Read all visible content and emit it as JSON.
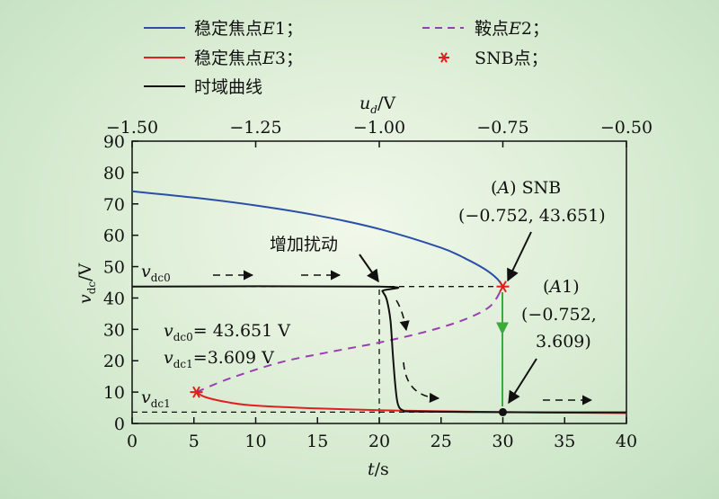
{
  "chart_data": {
    "type": "line",
    "xlabel": {
      "main": "t",
      "unit": "/s"
    },
    "ylabel": {
      "main": "v",
      "sub": "dc",
      "unit": "/V"
    },
    "top_axis_label": {
      "main": "u",
      "sub": "d",
      "unit": "/V"
    },
    "xlim": [
      0,
      40
    ],
    "ylim": [
      0,
      90
    ],
    "top_xlim": [
      -1.5,
      -0.5
    ],
    "x_ticks": [
      "0",
      "5",
      "10",
      "15",
      "20",
      "25",
      "30",
      "35",
      "40"
    ],
    "y_ticks": [
      "0",
      "10",
      "20",
      "30",
      "40",
      "50",
      "60",
      "70",
      "80",
      "90"
    ],
    "top_ticks": [
      "−1.50",
      "−1.25",
      "−1.00",
      "−0.75",
      "−0.50"
    ],
    "grid": false,
    "legend_position": "top",
    "colors": {
      "e1": "#2a4fa8",
      "e2": "#9a3fb0",
      "e3": "#e02020",
      "time": "#111111",
      "snb": "#e02020",
      "arrow_green": "#3aaa3a"
    },
    "legend": [
      {
        "key": "e1",
        "text_prefix": "稳定焦点",
        "text_italic": "E",
        "text_suffix": "1；"
      },
      {
        "key": "e2",
        "text_prefix": "鞍点",
        "text_italic": "E",
        "text_suffix": "2；"
      },
      {
        "key": "e3",
        "text_prefix": "稳定焦点",
        "text_italic": "E",
        "text_suffix": "3；"
      },
      {
        "key": "snb",
        "text": "SNB点；"
      },
      {
        "key": "time",
        "text": "时域曲线"
      }
    ],
    "series": [
      {
        "name": "稳定焦点E1",
        "style": "solid",
        "points": [
          [
            0,
            74.0
          ],
          [
            5,
            72.0
          ],
          [
            10,
            69.5
          ],
          [
            15,
            66.3
          ],
          [
            20,
            62.0
          ],
          [
            25,
            56.0
          ],
          [
            27,
            52.5
          ],
          [
            28.5,
            49.3
          ],
          [
            29.5,
            46.3
          ],
          [
            30,
            43.651
          ]
        ]
      },
      {
        "name": "鞍点E2",
        "style": "dashed",
        "points": [
          [
            5.2,
            10.0
          ],
          [
            8,
            14.5
          ],
          [
            12,
            19.5
          ],
          [
            16,
            22.8
          ],
          [
            20,
            25.8
          ],
          [
            24,
            29.5
          ],
          [
            27,
            33.3
          ],
          [
            29,
            37.5
          ],
          [
            30,
            43.651
          ]
        ]
      },
      {
        "name": "稳定焦点E3",
        "style": "solid",
        "points": [
          [
            5.2,
            10.0
          ],
          [
            6,
            8.3
          ],
          [
            8,
            6.6
          ],
          [
            10,
            5.7
          ],
          [
            15,
            4.8
          ],
          [
            20,
            4.2
          ],
          [
            25,
            3.9
          ],
          [
            30,
            3.609
          ],
          [
            35,
            3.45
          ],
          [
            40,
            3.3
          ]
        ]
      },
      {
        "name": "时域曲线",
        "style": "solid",
        "points": [
          [
            0,
            43.651
          ],
          [
            20,
            43.651
          ],
          [
            20.25,
            42.2
          ],
          [
            20.6,
            39.5
          ],
          [
            20.9,
            33.0
          ],
          [
            21.1,
            22.0
          ],
          [
            21.3,
            12.0
          ],
          [
            21.5,
            6.3
          ],
          [
            21.9,
            4.2
          ],
          [
            23,
            3.8
          ],
          [
            30,
            3.609
          ],
          [
            35,
            3.55
          ],
          [
            40,
            3.55
          ]
        ]
      }
    ],
    "markers": [
      {
        "x": 30,
        "y": 43.651,
        "symbol": "asterisk",
        "color": "snb"
      },
      {
        "x": 5.2,
        "y": 10.0,
        "symbol": "asterisk",
        "color": "snb"
      },
      {
        "x": 30,
        "y": 3.609,
        "symbol": "dot",
        "color": "time"
      }
    ],
    "guides": [
      {
        "from": [
          0,
          43.651
        ],
        "to": [
          30,
          43.651
        ]
      },
      {
        "from": [
          0,
          3.609
        ],
        "to": [
          30,
          3.609
        ]
      },
      {
        "from": [
          20,
          0
        ],
        "to": [
          20,
          43.651
        ]
      }
    ],
    "annotations": {
      "vdc0_label": {
        "v": "v",
        "sub": "dc0"
      },
      "vdc1_label": {
        "v": "v",
        "sub": "dc1"
      },
      "vdc0_value": {
        "v": "v",
        "sub": "dc0",
        "text": "= 43.651 V"
      },
      "vdc1_value": {
        "v": "v",
        "sub": "dc1",
        "text": "=3.609 V"
      },
      "disturb": "增加扰动",
      "A_line1_italic": "A",
      "A_line1_rest": "SNB",
      "A_line2": "(−0.752, 43.651)",
      "A1_italic": "A",
      "A1_rest": "1)",
      "A1_line2": "(−0.752,",
      "A1_line3": "3.609)"
    }
  }
}
